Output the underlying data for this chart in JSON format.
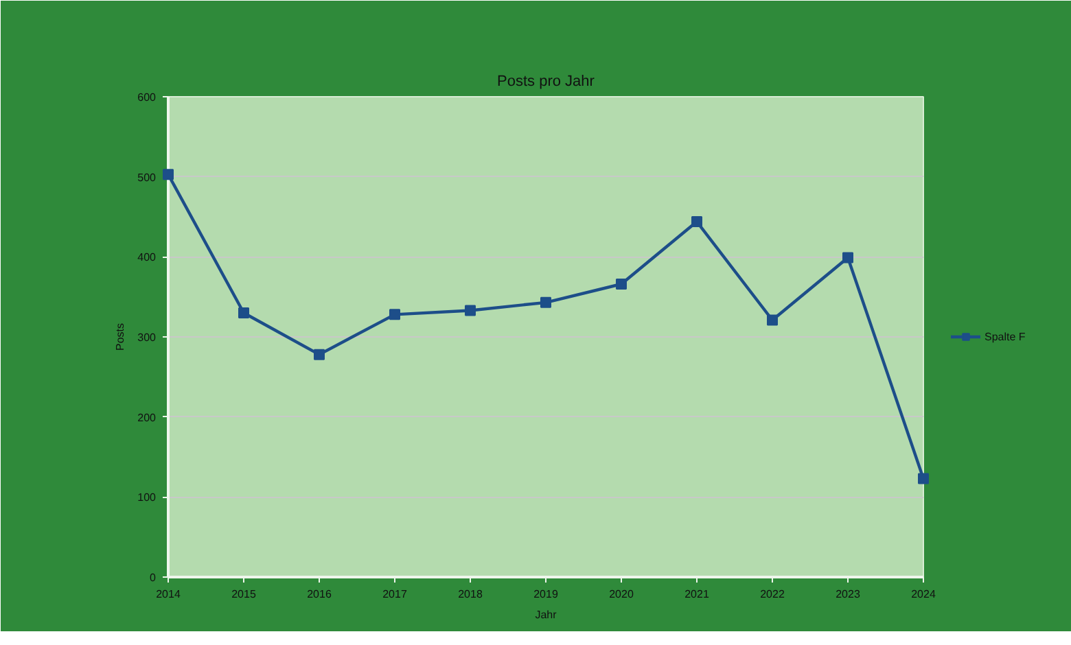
{
  "chart_data": {
    "type": "line",
    "title": "Posts pro Jahr",
    "xlabel": "Jahr",
    "ylabel": "Posts",
    "x": [
      2014,
      2015,
      2016,
      2017,
      2018,
      2019,
      2020,
      2021,
      2022,
      2023,
      2024
    ],
    "series": [
      {
        "name": "Spalte F",
        "color": "#1d4e89",
        "values": [
          503,
          330,
          278,
          328,
          333,
          343,
          366,
          444,
          321,
          399,
          123
        ]
      }
    ],
    "xlim": [
      2014,
      2024
    ],
    "xticks": [
      2014,
      2015,
      2016,
      2017,
      2018,
      2019,
      2020,
      2021,
      2022,
      2023,
      2024
    ],
    "ylim": [
      0,
      600
    ],
    "yticks": [
      0,
      100,
      200,
      300,
      400,
      500,
      600
    ],
    "grid": "y",
    "legend": "right",
    "marker": "square",
    "line_style": "solid"
  }
}
